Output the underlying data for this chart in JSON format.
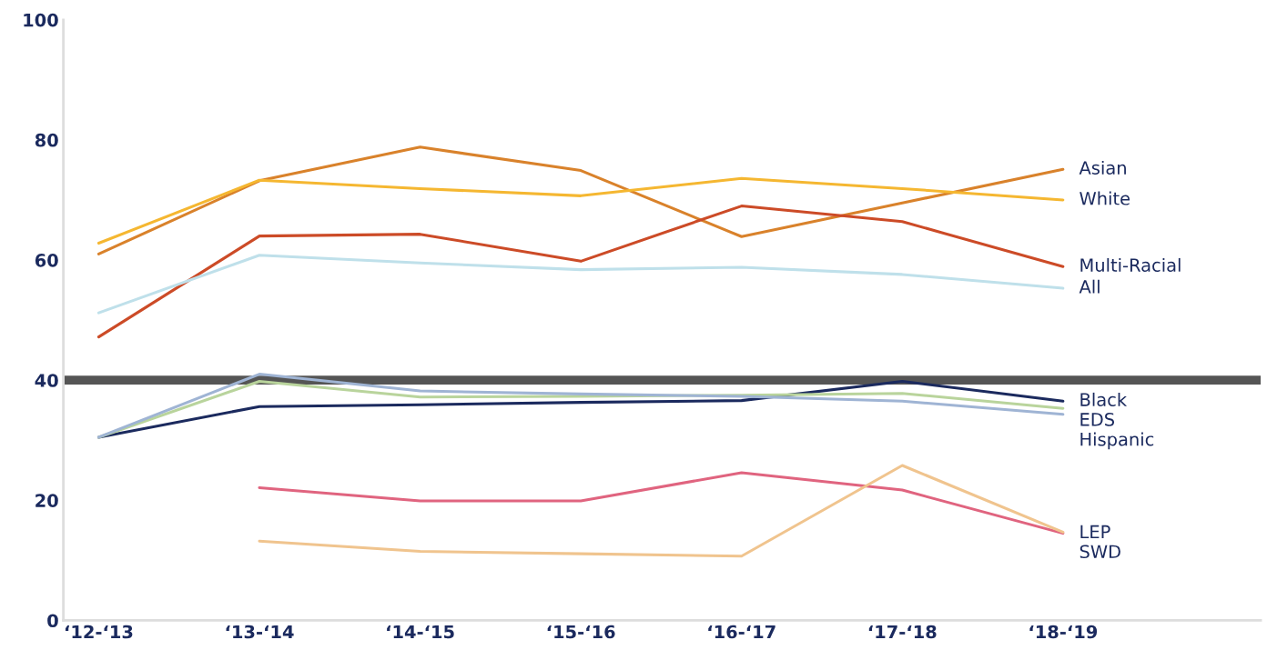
{
  "chart_data": {
    "type": "line",
    "categories": [
      "‘12-‘13",
      "‘13-‘14",
      "‘14-‘15",
      "‘15-‘16",
      "‘16-‘17",
      "‘17-‘18",
      "‘18-‘19"
    ],
    "series": [
      {
        "name": "Asian",
        "color": "#d9822b",
        "values": [
          61.0,
          73.2,
          78.8,
          74.9,
          63.9,
          69.5,
          75.1
        ]
      },
      {
        "name": "White",
        "color": "#f5b731",
        "values": [
          62.8,
          73.3,
          71.9,
          70.7,
          73.6,
          71.9,
          70.0
        ]
      },
      {
        "name": "Multi-Racial",
        "color": "#cc4b27",
        "values": [
          47.2,
          64.0,
          64.3,
          59.8,
          69.0,
          66.4,
          58.9
        ]
      },
      {
        "name": "All",
        "color": "#bfe0ea",
        "values": [
          51.2,
          60.8,
          59.5,
          58.4,
          58.8,
          57.6,
          55.3
        ]
      },
      {
        "name": "Black",
        "color": "#1b2a5e",
        "values": [
          30.5,
          35.6,
          35.9,
          36.3,
          36.6,
          39.8,
          36.5
        ]
      },
      {
        "name": "EDS",
        "color": "#b9d49c",
        "values": [
          30.5,
          39.8,
          37.2,
          37.3,
          37.5,
          37.8,
          35.3
        ]
      },
      {
        "name": "Hispanic",
        "color": "#9fb4d4",
        "values": [
          30.5,
          41.0,
          38.2,
          37.7,
          37.3,
          36.5,
          34.3
        ]
      },
      {
        "name": "LEP",
        "color": "#e0647f",
        "values": [
          null,
          22.1,
          19.9,
          19.9,
          24.6,
          21.7,
          14.5
        ]
      },
      {
        "name": "SWD",
        "color": "#f0c48e",
        "values": [
          null,
          13.2,
          11.5,
          11.1,
          10.7,
          25.8,
          14.7
        ]
      }
    ],
    "ylim": [
      0,
      100
    ],
    "yticks": [
      0,
      20,
      40,
      60,
      80,
      100
    ],
    "ref_lines": [
      {
        "axis": "y",
        "value": 40,
        "color": "#555555",
        "line_style": "solid"
      }
    ],
    "grid": false,
    "legend": false,
    "marker": "none",
    "line_style": "solid"
  }
}
